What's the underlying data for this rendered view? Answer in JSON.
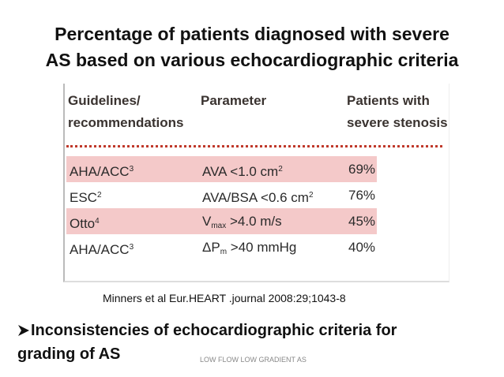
{
  "title": [
    "Percentage of patients diagnosed with severe",
    "AS based on various echocardiographic criteria"
  ],
  "table": {
    "header": [
      [
        "Guidelines/",
        "recommendations"
      ],
      [
        "Parameter"
      ],
      [
        "Patients with",
        "severe stenosis"
      ]
    ],
    "rows": [
      [
        [
          {
            "text": "AHA/ACC"
          },
          {
            "sup": "3"
          }
        ],
        [
          {
            "text": "AVA <1.0 cm"
          },
          {
            "sup": "2"
          }
        ],
        [
          {
            "text": "69%"
          }
        ]
      ],
      [
        [
          {
            "text": "ESC"
          },
          {
            "sup": "2"
          }
        ],
        [
          {
            "text": "AVA/BSA <0.6 cm"
          },
          {
            "sup": "2"
          }
        ],
        [
          {
            "text": "76%"
          }
        ]
      ],
      [
        [
          {
            "text": "Otto"
          },
          {
            "sup": "4"
          }
        ],
        [
          {
            "text": "V"
          },
          {
            "sub": "max"
          },
          {
            "text": " >4.0 m/s"
          }
        ],
        [
          {
            "text": "45%"
          }
        ]
      ],
      [
        [
          {
            "text": "AHA/ACC"
          },
          {
            "sup": "3"
          }
        ],
        [
          {
            "text": "ΔP"
          },
          {
            "sub": "m"
          },
          {
            "text": " >40 mmHg"
          }
        ],
        [
          {
            "text": "40%"
          }
        ]
      ]
    ]
  },
  "citation": "Minners et al Eur.HEART .journal 2008:29;1043-8",
  "bullet": [
    "Inconsistencies of echocardiographic  criteria for",
    "grading of AS"
  ],
  "footer": "LOW FLOW LOW GRADIENT  AS"
}
